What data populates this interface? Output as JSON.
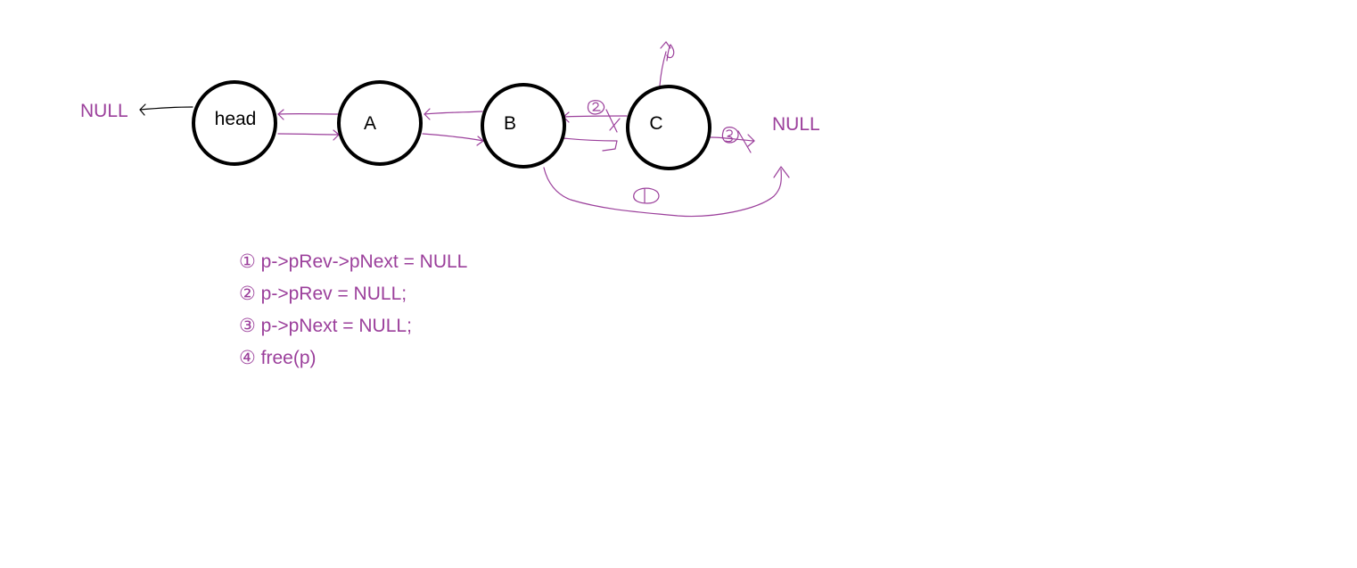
{
  "colors": {
    "ink": "#9b3f9b",
    "node_stroke": "#000000"
  },
  "nodes": [
    {
      "id": "head",
      "label": "head"
    },
    {
      "id": "a",
      "label": "A"
    },
    {
      "id": "b",
      "label": "B"
    },
    {
      "id": "c",
      "label": "C"
    }
  ],
  "null_left": "NULL",
  "null_right": "NULL",
  "steps": [
    "① p->pRev->pNext = NULL",
    "② p->pRev = NULL;",
    "③ p->pNext = NULL;",
    "④ free(p)"
  ]
}
